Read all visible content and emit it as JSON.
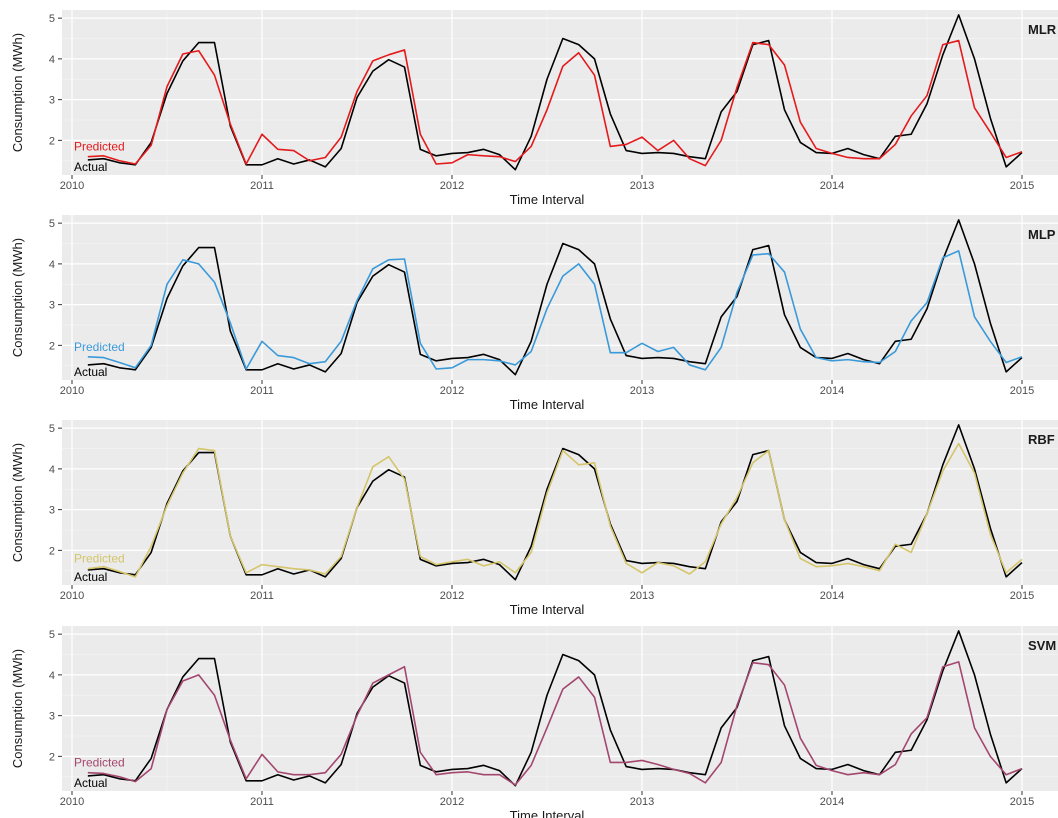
{
  "chart_data": [
    {
      "type": "line",
      "model": "MLR",
      "xlabel": "Time Interval",
      "ylabel": "Consumption (MWh)",
      "xlim": [
        2010,
        2015
      ],
      "ylim": [
        1.15,
        5.2
      ],
      "x_ticks": [
        2010,
        2011,
        2012,
        2013,
        2014,
        2015
      ],
      "y_ticks": [
        2,
        3,
        4,
        5
      ],
      "series": [
        {
          "name": "Actual",
          "color": "#000000",
          "values": [
            1.52,
            1.55,
            1.45,
            1.4,
            1.95,
            3.15,
            3.95,
            4.4,
            4.4,
            2.35,
            1.4,
            1.4,
            1.55,
            1.42,
            1.52,
            1.35,
            1.8,
            3.05,
            3.7,
            3.98,
            3.8,
            1.78,
            1.62,
            1.68,
            1.7,
            1.78,
            1.65,
            1.28,
            2.1,
            3.5,
            4.5,
            4.35,
            4.0,
            2.65,
            1.75,
            1.68,
            1.7,
            1.68,
            1.6,
            1.55,
            2.7,
            3.2,
            4.35,
            4.45,
            2.75,
            1.95,
            1.7,
            1.68,
            1.8,
            1.65,
            1.55,
            2.1,
            2.15,
            2.9,
            4.1,
            5.08,
            4.0,
            2.55,
            1.35,
            1.7
          ]
        },
        {
          "name": "Predicted",
          "color": "#e41a1c",
          "values": [
            1.6,
            1.62,
            1.5,
            1.42,
            1.88,
            3.32,
            4.12,
            4.2,
            3.6,
            2.4,
            1.42,
            2.15,
            1.78,
            1.75,
            1.5,
            1.58,
            2.08,
            3.2,
            3.95,
            4.1,
            4.22,
            2.15,
            1.42,
            1.45,
            1.65,
            1.62,
            1.6,
            1.48,
            1.85,
            2.75,
            3.82,
            4.15,
            3.6,
            1.85,
            1.9,
            2.08,
            1.75,
            2.0,
            1.55,
            1.38,
            2.0,
            3.3,
            4.4,
            4.35,
            3.85,
            2.45,
            1.8,
            1.68,
            1.58,
            1.55,
            1.55,
            1.9,
            2.6,
            3.1,
            4.35,
            4.45,
            2.8,
            2.2,
            1.58,
            1.72
          ]
        }
      ]
    },
    {
      "type": "line",
      "model": "MLP",
      "xlabel": "Time Interval",
      "ylabel": "Consumption (MWh)",
      "xlim": [
        2010,
        2015
      ],
      "ylim": [
        1.15,
        5.2
      ],
      "x_ticks": [
        2010,
        2011,
        2012,
        2013,
        2014,
        2015
      ],
      "y_ticks": [
        2,
        3,
        4,
        5
      ],
      "series": [
        {
          "name": "Actual",
          "color": "#000000",
          "values": [
            1.52,
            1.55,
            1.45,
            1.4,
            1.95,
            3.15,
            3.95,
            4.4,
            4.4,
            2.35,
            1.4,
            1.4,
            1.55,
            1.42,
            1.52,
            1.35,
            1.8,
            3.05,
            3.7,
            3.98,
            3.8,
            1.78,
            1.62,
            1.68,
            1.7,
            1.78,
            1.65,
            1.28,
            2.1,
            3.5,
            4.5,
            4.35,
            4.0,
            2.65,
            1.75,
            1.68,
            1.7,
            1.68,
            1.6,
            1.55,
            2.7,
            3.2,
            4.35,
            4.45,
            2.75,
            1.95,
            1.7,
            1.68,
            1.8,
            1.65,
            1.55,
            2.1,
            2.15,
            2.9,
            4.1,
            5.08,
            4.0,
            2.55,
            1.35,
            1.7
          ]
        },
        {
          "name": "Predicted",
          "color": "#3a9ad9",
          "values": [
            1.72,
            1.7,
            1.58,
            1.45,
            2.0,
            3.5,
            4.1,
            4.0,
            3.55,
            2.55,
            1.42,
            2.1,
            1.75,
            1.7,
            1.55,
            1.6,
            2.1,
            3.1,
            3.88,
            4.1,
            4.12,
            2.05,
            1.42,
            1.45,
            1.65,
            1.65,
            1.62,
            1.52,
            1.85,
            2.9,
            3.7,
            4.0,
            3.5,
            1.82,
            1.82,
            2.05,
            1.85,
            1.95,
            1.52,
            1.4,
            1.95,
            3.3,
            4.22,
            4.25,
            3.8,
            2.4,
            1.7,
            1.62,
            1.65,
            1.6,
            1.58,
            1.85,
            2.6,
            3.05,
            4.15,
            4.32,
            2.7,
            2.1,
            1.58,
            1.72
          ]
        }
      ]
    },
    {
      "type": "line",
      "model": "RBF",
      "xlabel": "Time Interval",
      "ylabel": "Consumption (MWh)",
      "xlim": [
        2010,
        2015
      ],
      "ylim": [
        1.15,
        5.2
      ],
      "x_ticks": [
        2010,
        2011,
        2012,
        2013,
        2014,
        2015
      ],
      "y_ticks": [
        2,
        3,
        4,
        5
      ],
      "series": [
        {
          "name": "Actual",
          "color": "#000000",
          "values": [
            1.52,
            1.55,
            1.45,
            1.4,
            1.95,
            3.15,
            3.95,
            4.4,
            4.4,
            2.35,
            1.4,
            1.4,
            1.55,
            1.42,
            1.52,
            1.35,
            1.8,
            3.05,
            3.7,
            3.98,
            3.8,
            1.78,
            1.62,
            1.68,
            1.7,
            1.78,
            1.65,
            1.28,
            2.1,
            3.5,
            4.5,
            4.35,
            4.0,
            2.65,
            1.75,
            1.68,
            1.7,
            1.68,
            1.6,
            1.55,
            2.7,
            3.2,
            4.35,
            4.45,
            2.75,
            1.95,
            1.7,
            1.68,
            1.8,
            1.65,
            1.55,
            2.1,
            2.15,
            2.9,
            4.1,
            5.08,
            4.0,
            2.55,
            1.35,
            1.7
          ]
        },
        {
          "name": "Predicted",
          "color": "#d4c56a",
          "values": [
            1.55,
            1.6,
            1.48,
            1.35,
            2.1,
            3.1,
            3.9,
            4.5,
            4.45,
            2.35,
            1.45,
            1.65,
            1.6,
            1.55,
            1.52,
            1.42,
            1.85,
            3.05,
            4.05,
            4.3,
            3.75,
            1.85,
            1.65,
            1.72,
            1.78,
            1.62,
            1.72,
            1.45,
            1.95,
            3.4,
            4.45,
            4.1,
            4.15,
            2.6,
            1.68,
            1.45,
            1.7,
            1.62,
            1.42,
            1.72,
            2.65,
            3.3,
            4.15,
            4.45,
            2.75,
            1.8,
            1.6,
            1.62,
            1.68,
            1.6,
            1.5,
            2.15,
            1.95,
            2.9,
            3.95,
            4.62,
            3.9,
            2.4,
            1.45,
            1.78
          ]
        }
      ]
    },
    {
      "type": "line",
      "model": "SVM",
      "xlabel": "Time Interval",
      "ylabel": "Consumption (MWh)",
      "xlim": [
        2010,
        2015
      ],
      "ylim": [
        1.15,
        5.2
      ],
      "x_ticks": [
        2010,
        2011,
        2012,
        2013,
        2014,
        2015
      ],
      "y_ticks": [
        2,
        3,
        4,
        5
      ],
      "series": [
        {
          "name": "Actual",
          "color": "#000000",
          "values": [
            1.52,
            1.55,
            1.45,
            1.4,
            1.95,
            3.15,
            3.95,
            4.4,
            4.4,
            2.35,
            1.4,
            1.4,
            1.55,
            1.42,
            1.52,
            1.35,
            1.8,
            3.05,
            3.7,
            3.98,
            3.8,
            1.78,
            1.62,
            1.68,
            1.7,
            1.78,
            1.65,
            1.28,
            2.1,
            3.5,
            4.5,
            4.35,
            4.0,
            2.65,
            1.75,
            1.68,
            1.7,
            1.68,
            1.6,
            1.55,
            2.7,
            3.2,
            4.35,
            4.45,
            2.75,
            1.95,
            1.7,
            1.68,
            1.8,
            1.65,
            1.55,
            2.1,
            2.15,
            2.9,
            4.1,
            5.08,
            4.0,
            2.55,
            1.35,
            1.7
          ]
        },
        {
          "name": "Predicted",
          "color": "#a3476f",
          "values": [
            1.6,
            1.58,
            1.5,
            1.38,
            1.7,
            3.15,
            3.85,
            4.0,
            3.5,
            2.4,
            1.45,
            2.05,
            1.62,
            1.55,
            1.55,
            1.6,
            2.05,
            3.0,
            3.8,
            4.0,
            4.2,
            2.1,
            1.55,
            1.6,
            1.62,
            1.55,
            1.55,
            1.3,
            1.78,
            2.7,
            3.65,
            3.95,
            3.45,
            1.85,
            1.85,
            1.9,
            1.8,
            1.68,
            1.58,
            1.35,
            1.85,
            3.25,
            4.3,
            4.25,
            3.75,
            2.45,
            1.78,
            1.65,
            1.55,
            1.6,
            1.55,
            1.8,
            2.55,
            2.95,
            4.2,
            4.32,
            2.7,
            2.0,
            1.55,
            1.7
          ]
        }
      ]
    }
  ]
}
